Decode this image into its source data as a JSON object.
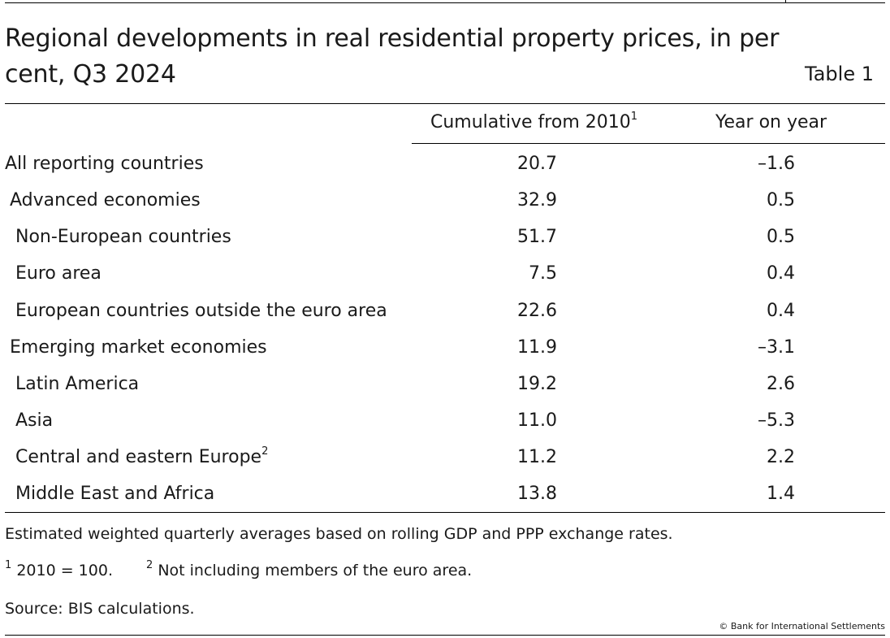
{
  "title": "Regional developments in real residential property prices, in per cent, Q3 2024",
  "table_label": "Table 1",
  "columns": {
    "cumulative": "Cumulative from 2010",
    "cumulative_sup": "1",
    "yoy": "Year on year"
  },
  "rows": [
    {
      "label": "All reporting countries",
      "cumulative": "20.7",
      "yoy": "–1.6"
    },
    {
      "label": "Advanced economies",
      "cumulative": "32.9",
      "yoy": "0.5"
    },
    {
      "label": "Non-European countries",
      "cumulative": "51.7",
      "yoy": "0.5"
    },
    {
      "label": "Euro area",
      "cumulative": "7.5",
      "yoy": "0.4"
    },
    {
      "label": "European countries outside the euro area",
      "cumulative": "22.6",
      "yoy": "0.4"
    },
    {
      "label": "Emerging market economies",
      "cumulative": "11.9",
      "yoy": "–3.1"
    },
    {
      "label": "Latin America",
      "cumulative": "19.2",
      "yoy": "2.6"
    },
    {
      "label": "Asia",
      "cumulative": "11.0",
      "yoy": "–5.3"
    },
    {
      "label": "Central and eastern Europe",
      "label_sup": "2",
      "cumulative": "11.2",
      "yoy": "2.2"
    },
    {
      "label": "Middle East and Africa",
      "cumulative": "13.8",
      "yoy": "1.4"
    }
  ],
  "notes": {
    "estimate": "Estimated weighted quarterly averages based on rolling GDP and PPP exchange rates.",
    "fn1_mark": "1",
    "fn1_text": " 2010 = 100.",
    "fn2_mark": "2",
    "fn2_text": " Not including members of the euro area.",
    "source": "Source: BIS calculations."
  },
  "copyright": "© Bank for International Settlements"
}
